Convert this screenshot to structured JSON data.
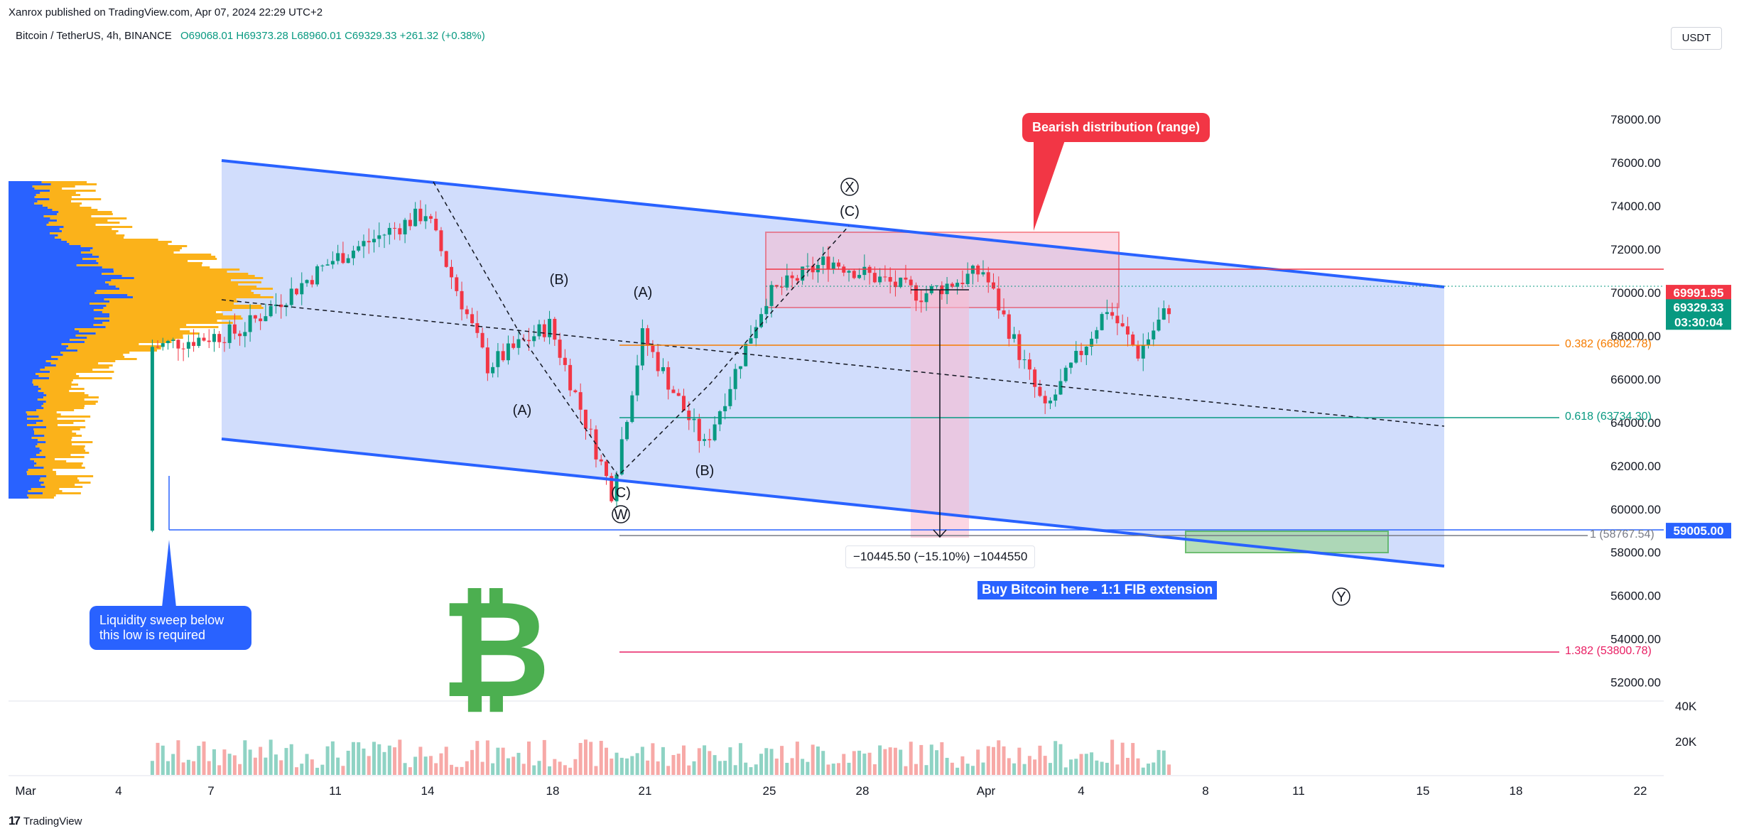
{
  "header": {
    "publisher": "Xanrox published on TradingView.com, Apr 07, 2024 22:29 UTC+2",
    "symbol": "Bitcoin / TetherUS, 4h, BINANCE",
    "open": "O69068.01",
    "high": "H69373.28",
    "low": "L68960.01",
    "close": "C69329.33",
    "change": "+261.32 (+0.38%)",
    "currency": "USDT"
  },
  "footer": {
    "logo_text": "TradingView"
  },
  "annotations": {
    "liquidity": "Liquidity sweep below this low is required",
    "bearish": "Bearish distribution (range)",
    "buy": "Buy Bitcoin here - 1:1 FIB extension",
    "measure": "−10445.50 (−15.10%) −1044550",
    "wave_labels": [
      "X",
      "(C)",
      "(B)",
      "(A)",
      "(A)",
      "(B)",
      "(C)",
      "W",
      "Y"
    ]
  },
  "fib_levels": [
    {
      "label": "0.382 (66802.78)",
      "price": 66802.78,
      "color": "#f57c00"
    },
    {
      "label": "0.618 (63734.30)",
      "price": 63734.3,
      "color": "#089981"
    },
    {
      "label": "1 (58767.54)",
      "price": 58767.54,
      "color": "#787b86"
    },
    {
      "label": "1.382 (53800.78)",
      "price": 53800.78,
      "color": "#e91e63"
    }
  ],
  "price_badges": [
    {
      "text": "69991.95",
      "color": "#f23645"
    },
    {
      "text": "69329.33",
      "color": "#089981"
    },
    {
      "text": "03:30:04",
      "color": "#089981"
    },
    {
      "text": "59005.00",
      "color": "#2962ff"
    }
  ],
  "chart_data": {
    "type": "candlestick",
    "title": "",
    "y_ticks": [
      "78000.00",
      "76000.00",
      "74000.00",
      "72000.00",
      "70000.00",
      "68000.00",
      "66000.00",
      "64000.00",
      "62000.00",
      "60000.00",
      "58000.00",
      "56000.00",
      "54000.00",
      "52000.00"
    ],
    "ylim": [
      51400,
      79800
    ],
    "volume_ticks": [
      "40K",
      "20K"
    ],
    "x_ticks": [
      "Mar",
      "4",
      "7",
      "11",
      "14",
      "18",
      "21",
      "25",
      "28",
      "Apr",
      "4",
      "8",
      "11",
      "15",
      "18",
      "22"
    ],
    "candles_4h_anchor_points": [
      {
        "date": "2024-03-05",
        "price": 59005
      },
      {
        "date": "2024-03-05",
        "price": 67500
      },
      {
        "date": "2024-03-08",
        "price": 68200
      },
      {
        "date": "2024-03-11",
        "price": 71500
      },
      {
        "date": "2024-03-14",
        "price": 73700
      },
      {
        "date": "2024-03-16",
        "price": 66600
      },
      {
        "date": "2024-03-18",
        "price": 68500
      },
      {
        "date": "2024-03-20",
        "price": 60800
      },
      {
        "date": "2024-03-21",
        "price": 68000
      },
      {
        "date": "2024-03-23",
        "price": 62900
      },
      {
        "date": "2024-03-25",
        "price": 69800
      },
      {
        "date": "2024-03-27",
        "price": 71500
      },
      {
        "date": "2024-03-30",
        "price": 69900
      },
      {
        "date": "2024-04-01",
        "price": 71000
      },
      {
        "date": "2024-04-03",
        "price": 64500
      },
      {
        "date": "2024-04-05",
        "price": 69300
      },
      {
        "date": "2024-04-06",
        "price": 67200
      },
      {
        "date": "2024-04-07",
        "price": 69329.33
      }
    ]
  },
  "colors": {
    "up": "#089981",
    "down": "#f23645",
    "channel": "#2962ff",
    "channel_fill": "#c5d4fb",
    "volume_profile_up": "#fbb21a",
    "volume_profile_down": "#2962ff"
  }
}
